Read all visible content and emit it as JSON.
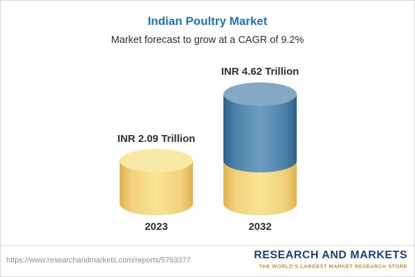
{
  "header": {
    "title": "Indian Poultry Market",
    "subtitle": "Market forecast to grow at a CAGR of 9.2%"
  },
  "chart_data": {
    "type": "bar",
    "style": "3d-cylinder",
    "title": "Indian Poultry Market",
    "subtitle": "Market forecast to grow at a CAGR of 9.2%",
    "categories": [
      "2023",
      "2032"
    ],
    "values": [
      2.09,
      4.62
    ],
    "labels": [
      "INR 2.09 Trillion",
      "INR 4.62 Trillion"
    ],
    "unit": "INR Trillion",
    "cagr_percent": 9.2,
    "ylim": [
      0,
      5
    ],
    "legend": "none",
    "grid": "off",
    "colors": {
      "bar_2023": "#f2d17b",
      "bar_2032_base": "#f2d17b",
      "bar_2032_top": "#4e82a9",
      "bar_2032_split_at": 2.09
    }
  },
  "footer": {
    "url": "https://www.researchandmarkets.com/reports/5753377",
    "logo_line1": "RESEARCH AND MARKETS",
    "logo_tagline": "THE WORLD'S LARGEST MARKET RESEARCH STORE"
  }
}
